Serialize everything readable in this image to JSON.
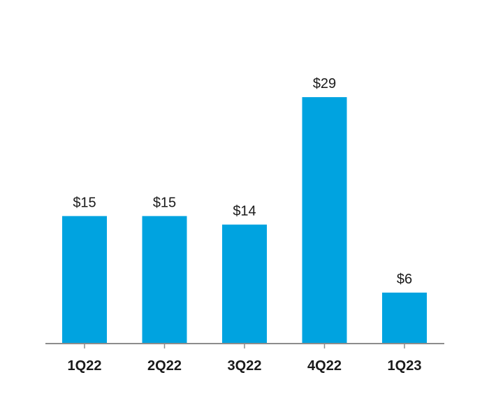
{
  "colors": {
    "bar": "#00a3e0",
    "axis": "#8c8c8c",
    "text": "#1a1a1a"
  },
  "chart_data": {
    "type": "bar",
    "title": "",
    "xlabel": "",
    "ylabel": "",
    "categories": [
      "1Q22",
      "2Q22",
      "3Q22",
      "4Q22",
      "1Q23"
    ],
    "values": [
      15,
      15,
      14,
      29,
      6
    ],
    "data_labels": [
      "$15",
      "$15",
      "$14",
      "$29",
      "$6"
    ],
    "ylim": [
      0,
      30
    ],
    "grid": false,
    "legend": "none"
  }
}
